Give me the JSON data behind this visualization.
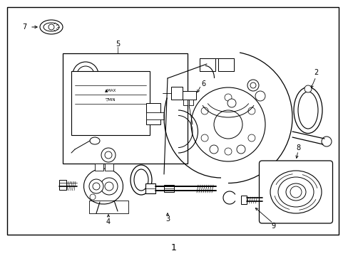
{
  "background_color": "#ffffff",
  "line_color": "#000000",
  "label_color": "#000000",
  "fig_width": 4.89,
  "fig_height": 3.6,
  "dpi": 100,
  "bottom_label": "1"
}
